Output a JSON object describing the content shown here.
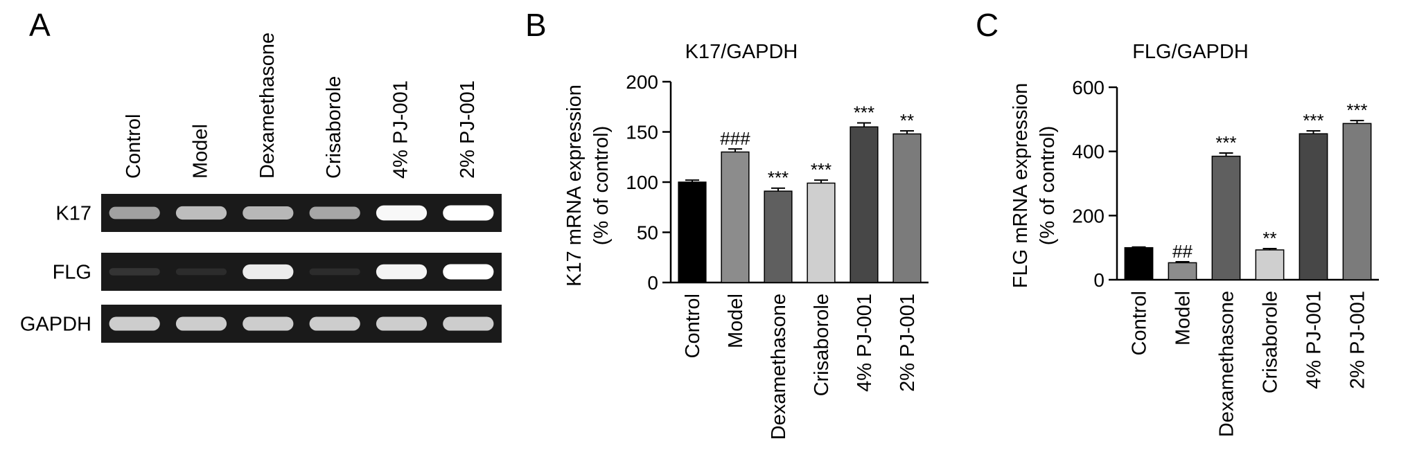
{
  "panels": {
    "A": {
      "label": "A",
      "lanes": [
        "Control",
        "Model",
        "Dexamethasone",
        "Crisaborole",
        "4% PJ-001",
        "2% PJ-001"
      ],
      "rows": [
        {
          "name": "K17",
          "intensity": [
            0.7,
            0.8,
            0.78,
            0.72,
            0.98,
            1.0
          ]
        },
        {
          "name": "FLG",
          "intensity": [
            0.18,
            0.12,
            0.95,
            0.12,
            0.97,
            1.0
          ]
        },
        {
          "name": "GAPDH",
          "intensity": [
            0.85,
            0.85,
            0.85,
            0.85,
            0.85,
            0.85
          ]
        }
      ]
    },
    "B": {
      "label": "B"
    },
    "C": {
      "label": "C"
    }
  },
  "chart_data": [
    {
      "type": "bar",
      "title": "K17/GAPDH",
      "ylabel_line1": "K17 mRNA expression",
      "ylabel_line2": "(% of control)",
      "categories": [
        "Control",
        "Model",
        "Dexamethasone",
        "Crisaborole",
        "4% PJ-001",
        "2% PJ-001"
      ],
      "values": [
        100,
        130,
        91,
        99,
        155,
        148
      ],
      "errors": [
        2,
        3,
        3,
        3,
        4,
        3
      ],
      "annotations": [
        "",
        "###",
        "***",
        "***",
        "***",
        "**"
      ],
      "colors": [
        "#000000",
        "#8c8c8c",
        "#5f5f5f",
        "#cfcfcf",
        "#474747",
        "#7b7b7b"
      ],
      "yticks": [
        0,
        50,
        100,
        150,
        200
      ],
      "ylim": [
        0,
        200
      ]
    },
    {
      "type": "bar",
      "title": "FLG/GAPDH",
      "ylabel_line1": "FLG mRNA expression",
      "ylabel_line2": "(% of control)",
      "categories": [
        "Control",
        "Model",
        "Dexamethasone",
        "Crisaborole",
        "4% PJ-001",
        "2% PJ-001"
      ],
      "values": [
        100,
        53,
        385,
        93,
        455,
        487
      ],
      "errors": [
        2,
        3,
        10,
        4,
        9,
        9
      ],
      "annotations": [
        "",
        "##",
        "***",
        "**",
        "***",
        "***"
      ],
      "colors": [
        "#000000",
        "#8c8c8c",
        "#5f5f5f",
        "#cfcfcf",
        "#474747",
        "#7b7b7b"
      ],
      "yticks": [
        0,
        200,
        400,
        600
      ],
      "ylim": [
        0,
        600
      ]
    }
  ]
}
